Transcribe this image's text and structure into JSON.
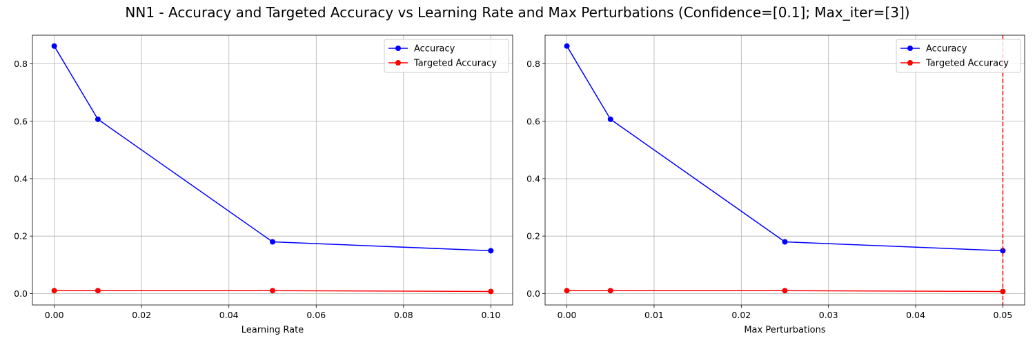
{
  "suptitle": "NN1 - Accuracy and Targeted Accuracy vs Learning Rate and Max Perturbations (Confidence=[0.1]; Max_iter=[3])",
  "chart_data": [
    {
      "type": "line",
      "xlabel": "Learning Rate",
      "ylabel": "",
      "xlim": [
        -0.005,
        0.105
      ],
      "ylim": [
        -0.04,
        0.9
      ],
      "xticks": [
        0.0,
        0.02,
        0.04,
        0.06,
        0.08,
        0.1
      ],
      "xtick_labels": [
        "0.00",
        "0.02",
        "0.04",
        "0.06",
        "0.08",
        "0.10"
      ],
      "yticks": [
        0.0,
        0.2,
        0.4,
        0.6,
        0.8
      ],
      "ytick_labels": [
        "0.0",
        "0.2",
        "0.4",
        "0.6",
        "0.8"
      ],
      "grid": true,
      "legend": "upper right",
      "x": [
        0.0,
        0.01,
        0.05,
        0.1
      ],
      "series": [
        {
          "name": "Accuracy",
          "color": "#0000ff",
          "values": [
            0.862,
            0.607,
            0.18,
            0.149
          ]
        },
        {
          "name": "Targeted Accuracy",
          "color": "#ff0000",
          "values": [
            0.01,
            0.01,
            0.01,
            0.007
          ]
        }
      ]
    },
    {
      "type": "line",
      "xlabel": "Max Perturbations",
      "ylabel": "",
      "xlim": [
        -0.0025,
        0.0525
      ],
      "ylim": [
        -0.04,
        0.9
      ],
      "xticks": [
        0.0,
        0.01,
        0.02,
        0.03,
        0.04,
        0.05
      ],
      "xtick_labels": [
        "0.00",
        "0.01",
        "0.02",
        "0.03",
        "0.04",
        "0.05"
      ],
      "yticks": [
        0.0,
        0.2,
        0.4,
        0.6,
        0.8
      ],
      "ytick_labels": [
        "0.0",
        "0.2",
        "0.4",
        "0.6",
        "0.8"
      ],
      "grid": true,
      "legend": "upper right",
      "vline": {
        "x": 0.05,
        "color": "#ff0000",
        "style": "dashed"
      },
      "x": [
        0.0,
        0.005,
        0.025,
        0.05
      ],
      "series": [
        {
          "name": "Accuracy",
          "color": "#0000ff",
          "values": [
            0.862,
            0.607,
            0.18,
            0.149
          ]
        },
        {
          "name": "Targeted Accuracy",
          "color": "#ff0000",
          "values": [
            0.01,
            0.01,
            0.01,
            0.007
          ]
        }
      ]
    }
  ]
}
